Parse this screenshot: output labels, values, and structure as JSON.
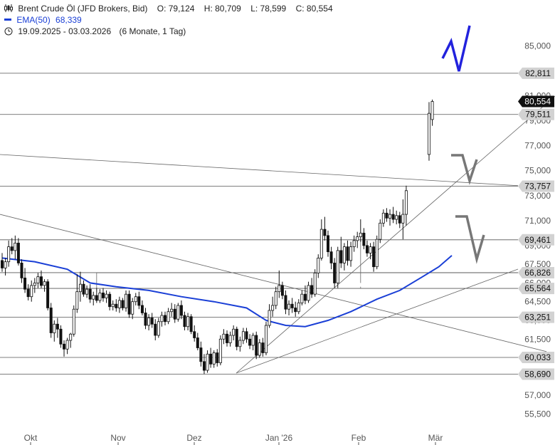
{
  "header": {
    "title": "Brent Crude Öl (JFD Brokers, Bid)",
    "open": "O: 79,124",
    "high": "H: 80,709",
    "low": "L: 78,599",
    "close": "C: 80,554",
    "ema_label": "EMA(50)",
    "ema_value": "68,339",
    "ema_color": "#1a3fd6",
    "date_range": "19.09.2025 - 03.03.2026",
    "period": "(6 Monate, 1 Tag)"
  },
  "chart_data": {
    "type": "candlestick",
    "y_axis": {
      "ticks": [
        "85,000",
        "81,000",
        "79,000",
        "77,000",
        "75,000",
        "73,000",
        "71,000",
        "69,000",
        "67,500",
        "66,000",
        "64,500",
        "63,000",
        "61,500",
        "60,000",
        "57,000",
        "55,500"
      ],
      "tick_values": [
        85.0,
        81.0,
        79.0,
        77.0,
        75.0,
        73.0,
        71.0,
        69.0,
        67.5,
        66.0,
        64.5,
        63.0,
        61.5,
        60.0,
        57.0,
        55.5
      ],
      "position": "right"
    },
    "x_axis": {
      "months": [
        "Okt",
        "Nov",
        "Dez",
        "Jan '26",
        "Feb",
        "Mär"
      ]
    },
    "levels": [
      {
        "label": "82,811",
        "value": 82.811,
        "highlight": false
      },
      {
        "label": "80,554",
        "value": 80.554,
        "highlight": true
      },
      {
        "label": "79,511",
        "value": 79.511,
        "highlight": false
      },
      {
        "label": "73,757",
        "value": 73.757,
        "highlight": false
      },
      {
        "label": "69,461",
        "value": 69.461,
        "highlight": false
      },
      {
        "label": "66,826",
        "value": 66.826,
        "highlight": false
      },
      {
        "label": "65,564",
        "value": 65.564,
        "highlight": false
      },
      {
        "label": "63,251",
        "value": 63.251,
        "highlight": false
      },
      {
        "label": "60,033",
        "value": 60.033,
        "highlight": false
      },
      {
        "label": "58,690",
        "value": 58.69,
        "highlight": false
      }
    ],
    "ema_series_name": "EMA(50)",
    "ema": [
      {
        "t": 0,
        "v": 68.0
      },
      {
        "t": 10,
        "v": 67.7
      },
      {
        "t": 20,
        "v": 67.1
      },
      {
        "t": 27,
        "v": 66.0
      },
      {
        "t": 35,
        "v": 65.7
      },
      {
        "t": 45,
        "v": 65.4
      },
      {
        "t": 55,
        "v": 64.9
      },
      {
        "t": 65,
        "v": 64.5
      },
      {
        "t": 75,
        "v": 64.0
      },
      {
        "t": 81,
        "v": 63.0
      },
      {
        "t": 87,
        "v": 62.6
      },
      {
        "t": 93,
        "v": 62.5
      },
      {
        "t": 100,
        "v": 63.0
      },
      {
        "t": 107,
        "v": 63.7
      },
      {
        "t": 115,
        "v": 64.7
      },
      {
        "t": 122,
        "v": 65.4
      },
      {
        "t": 129,
        "v": 66.5
      },
      {
        "t": 134,
        "v": 67.3
      },
      {
        "t": 138,
        "v": 68.2
      }
    ],
    "candles": [
      {
        "t": 0,
        "o": 67.8,
        "h": 68.4,
        "l": 66.9,
        "c": 67.2
      },
      {
        "t": 1,
        "o": 67.2,
        "h": 68.0,
        "l": 66.6,
        "c": 67.7
      },
      {
        "t": 2,
        "o": 67.7,
        "h": 69.4,
        "l": 67.3,
        "c": 68.9
      },
      {
        "t": 3,
        "o": 68.9,
        "h": 69.6,
        "l": 68.3,
        "c": 68.6
      },
      {
        "t": 4,
        "o": 68.6,
        "h": 69.8,
        "l": 67.9,
        "c": 69.2
      },
      {
        "t": 5,
        "o": 69.2,
        "h": 69.6,
        "l": 67.4,
        "c": 67.6
      },
      {
        "t": 6,
        "o": 67.6,
        "h": 67.9,
        "l": 66.0,
        "c": 66.4
      },
      {
        "t": 7,
        "o": 66.4,
        "h": 67.2,
        "l": 65.2,
        "c": 65.5
      },
      {
        "t": 8,
        "o": 65.5,
        "h": 65.9,
        "l": 64.6,
        "c": 64.9
      },
      {
        "t": 9,
        "o": 64.9,
        "h": 66.2,
        "l": 64.5,
        "c": 65.8
      },
      {
        "t": 10,
        "o": 65.8,
        "h": 66.4,
        "l": 65.2,
        "c": 66.0
      },
      {
        "t": 11,
        "o": 66.0,
        "h": 66.8,
        "l": 65.6,
        "c": 66.5
      },
      {
        "t": 12,
        "o": 66.5,
        "h": 67.0,
        "l": 65.6,
        "c": 65.8
      },
      {
        "t": 13,
        "o": 65.8,
        "h": 66.3,
        "l": 65.3,
        "c": 66.1
      },
      {
        "t": 14,
        "o": 66.1,
        "h": 66.3,
        "l": 63.8,
        "c": 64.0
      },
      {
        "t": 15,
        "o": 64.0,
        "h": 64.4,
        "l": 61.6,
        "c": 62.0
      },
      {
        "t": 16,
        "o": 62.0,
        "h": 63.0,
        "l": 61.3,
        "c": 62.7
      },
      {
        "t": 17,
        "o": 62.7,
        "h": 63.2,
        "l": 61.6,
        "c": 62.3
      },
      {
        "t": 18,
        "o": 62.3,
        "h": 62.6,
        "l": 60.8,
        "c": 61.1
      },
      {
        "t": 19,
        "o": 61.1,
        "h": 61.4,
        "l": 60.1,
        "c": 60.7
      },
      {
        "t": 20,
        "o": 60.7,
        "h": 61.6,
        "l": 60.3,
        "c": 61.4
      },
      {
        "t": 21,
        "o": 61.4,
        "h": 62.0,
        "l": 60.8,
        "c": 61.9
      },
      {
        "t": 22,
        "o": 61.9,
        "h": 64.2,
        "l": 61.7,
        "c": 63.9
      },
      {
        "t": 23,
        "o": 63.9,
        "h": 66.7,
        "l": 63.6,
        "c": 65.3
      },
      {
        "t": 24,
        "o": 65.3,
        "h": 66.9,
        "l": 64.5,
        "c": 65.9
      },
      {
        "t": 25,
        "o": 65.9,
        "h": 66.2,
        "l": 64.9,
        "c": 65.1
      },
      {
        "t": 26,
        "o": 65.1,
        "h": 65.8,
        "l": 64.8,
        "c": 65.5
      },
      {
        "t": 27,
        "o": 65.5,
        "h": 65.9,
        "l": 64.4,
        "c": 64.7
      },
      {
        "t": 28,
        "o": 64.7,
        "h": 65.3,
        "l": 64.2,
        "c": 65.0
      },
      {
        "t": 29,
        "o": 65.0,
        "h": 65.6,
        "l": 64.4,
        "c": 64.6
      },
      {
        "t": 30,
        "o": 64.6,
        "h": 65.5,
        "l": 64.4,
        "c": 65.2
      },
      {
        "t": 31,
        "o": 65.2,
        "h": 65.6,
        "l": 64.5,
        "c": 64.8
      },
      {
        "t": 32,
        "o": 64.8,
        "h": 65.4,
        "l": 64.4,
        "c": 65.1
      },
      {
        "t": 33,
        "o": 65.1,
        "h": 65.3,
        "l": 63.8,
        "c": 64.1
      },
      {
        "t": 34,
        "o": 64.1,
        "h": 64.6,
        "l": 63.8,
        "c": 64.3
      },
      {
        "t": 35,
        "o": 64.3,
        "h": 64.7,
        "l": 63.7,
        "c": 64.0
      },
      {
        "t": 36,
        "o": 64.0,
        "h": 64.9,
        "l": 63.6,
        "c": 64.6
      },
      {
        "t": 37,
        "o": 64.6,
        "h": 64.8,
        "l": 63.8,
        "c": 64.0
      },
      {
        "t": 38,
        "o": 64.0,
        "h": 65.4,
        "l": 63.7,
        "c": 65.1
      },
      {
        "t": 39,
        "o": 65.1,
        "h": 65.4,
        "l": 63.2,
        "c": 63.5
      },
      {
        "t": 40,
        "o": 63.5,
        "h": 64.8,
        "l": 63.1,
        "c": 64.5
      },
      {
        "t": 41,
        "o": 64.5,
        "h": 65.2,
        "l": 64.2,
        "c": 64.9
      },
      {
        "t": 42,
        "o": 64.9,
        "h": 65.3,
        "l": 63.9,
        "c": 64.2
      },
      {
        "t": 43,
        "o": 64.2,
        "h": 64.6,
        "l": 63.4,
        "c": 63.6
      },
      {
        "t": 44,
        "o": 63.6,
        "h": 64.0,
        "l": 62.3,
        "c": 62.6
      },
      {
        "t": 45,
        "o": 62.6,
        "h": 63.5,
        "l": 62.2,
        "c": 63.2
      },
      {
        "t": 46,
        "o": 63.2,
        "h": 63.6,
        "l": 62.4,
        "c": 62.7
      },
      {
        "t": 47,
        "o": 62.7,
        "h": 63.1,
        "l": 61.4,
        "c": 61.8
      },
      {
        "t": 48,
        "o": 61.8,
        "h": 63.2,
        "l": 61.6,
        "c": 62.9
      },
      {
        "t": 49,
        "o": 62.9,
        "h": 63.7,
        "l": 62.5,
        "c": 63.4
      },
      {
        "t": 50,
        "o": 63.4,
        "h": 63.7,
        "l": 62.6,
        "c": 62.9
      },
      {
        "t": 51,
        "o": 62.9,
        "h": 64.0,
        "l": 62.7,
        "c": 63.7
      },
      {
        "t": 52,
        "o": 63.7,
        "h": 64.4,
        "l": 63.3,
        "c": 63.9
      },
      {
        "t": 53,
        "o": 63.9,
        "h": 64.3,
        "l": 62.8,
        "c": 63.1
      },
      {
        "t": 54,
        "o": 63.1,
        "h": 64.4,
        "l": 62.9,
        "c": 64.2
      },
      {
        "t": 55,
        "o": 64.2,
        "h": 64.6,
        "l": 63.1,
        "c": 63.4
      },
      {
        "t": 56,
        "o": 63.4,
        "h": 63.7,
        "l": 62.2,
        "c": 62.5
      },
      {
        "t": 57,
        "o": 62.5,
        "h": 63.6,
        "l": 62.2,
        "c": 63.3
      },
      {
        "t": 58,
        "o": 63.3,
        "h": 63.5,
        "l": 61.9,
        "c": 62.1
      },
      {
        "t": 59,
        "o": 62.1,
        "h": 62.6,
        "l": 61.3,
        "c": 61.6
      },
      {
        "t": 60,
        "o": 61.6,
        "h": 62.0,
        "l": 60.6,
        "c": 60.8
      },
      {
        "t": 61,
        "o": 60.8,
        "h": 61.3,
        "l": 59.3,
        "c": 59.7
      },
      {
        "t": 62,
        "o": 59.7,
        "h": 60.3,
        "l": 58.7,
        "c": 59.0
      },
      {
        "t": 63,
        "o": 59.0,
        "h": 60.6,
        "l": 58.8,
        "c": 60.3
      },
      {
        "t": 64,
        "o": 60.3,
        "h": 60.8,
        "l": 59.2,
        "c": 59.5
      },
      {
        "t": 65,
        "o": 59.5,
        "h": 60.6,
        "l": 59.2,
        "c": 60.4
      },
      {
        "t": 66,
        "o": 60.4,
        "h": 60.7,
        "l": 59.3,
        "c": 59.6
      },
      {
        "t": 67,
        "o": 59.6,
        "h": 61.8,
        "l": 59.4,
        "c": 61.5
      },
      {
        "t": 68,
        "o": 61.5,
        "h": 62.3,
        "l": 61.1,
        "c": 61.9
      },
      {
        "t": 69,
        "o": 61.9,
        "h": 62.2,
        "l": 60.9,
        "c": 61.2
      },
      {
        "t": 70,
        "o": 61.2,
        "h": 62.1,
        "l": 60.9,
        "c": 61.8
      },
      {
        "t": 71,
        "o": 61.8,
        "h": 62.6,
        "l": 61.4,
        "c": 62.3
      },
      {
        "t": 72,
        "o": 62.3,
        "h": 62.5,
        "l": 60.6,
        "c": 60.9
      },
      {
        "t": 73,
        "o": 60.9,
        "h": 61.7,
        "l": 60.5,
        "c": 61.4
      },
      {
        "t": 74,
        "o": 61.4,
        "h": 62.4,
        "l": 61.1,
        "c": 62.1
      },
      {
        "t": 75,
        "o": 62.1,
        "h": 62.4,
        "l": 61.2,
        "c": 61.5
      },
      {
        "t": 76,
        "o": 61.5,
        "h": 61.9,
        "l": 60.7,
        "c": 61.0
      },
      {
        "t": 77,
        "o": 61.0,
        "h": 62.0,
        "l": 60.6,
        "c": 61.8
      },
      {
        "t": 78,
        "o": 61.8,
        "h": 62.1,
        "l": 59.9,
        "c": 60.2
      },
      {
        "t": 79,
        "o": 60.2,
        "h": 61.5,
        "l": 60.0,
        "c": 61.2
      },
      {
        "t": 80,
        "o": 61.2,
        "h": 61.6,
        "l": 60.1,
        "c": 60.4
      },
      {
        "t": 81,
        "o": 60.4,
        "h": 62.9,
        "l": 60.2,
        "c": 62.6
      },
      {
        "t": 82,
        "o": 62.6,
        "h": 64.3,
        "l": 62.4,
        "c": 63.8
      },
      {
        "t": 83,
        "o": 63.8,
        "h": 64.9,
        "l": 63.3,
        "c": 64.2
      },
      {
        "t": 84,
        "o": 64.2,
        "h": 65.7,
        "l": 63.9,
        "c": 65.3
      },
      {
        "t": 85,
        "o": 65.3,
        "h": 67.0,
        "l": 64.8,
        "c": 65.8
      },
      {
        "t": 86,
        "o": 65.8,
        "h": 66.1,
        "l": 64.7,
        "c": 65.0
      },
      {
        "t": 87,
        "o": 65.0,
        "h": 65.4,
        "l": 63.5,
        "c": 63.9
      },
      {
        "t": 88,
        "o": 63.9,
        "h": 64.6,
        "l": 63.4,
        "c": 64.3
      },
      {
        "t": 89,
        "o": 64.3,
        "h": 64.8,
        "l": 63.6,
        "c": 64.0
      },
      {
        "t": 90,
        "o": 64.0,
        "h": 64.5,
        "l": 63.3,
        "c": 63.7
      },
      {
        "t": 91,
        "o": 63.7,
        "h": 64.7,
        "l": 63.5,
        "c": 64.4
      },
      {
        "t": 92,
        "o": 64.4,
        "h": 65.4,
        "l": 64.2,
        "c": 65.1
      },
      {
        "t": 93,
        "o": 65.1,
        "h": 65.8,
        "l": 64.3,
        "c": 64.6
      },
      {
        "t": 94,
        "o": 64.6,
        "h": 66.1,
        "l": 64.4,
        "c": 65.8
      },
      {
        "t": 95,
        "o": 65.8,
        "h": 66.4,
        "l": 64.8,
        "c": 65.1
      },
      {
        "t": 96,
        "o": 65.1,
        "h": 67.1,
        "l": 64.9,
        "c": 66.8
      },
      {
        "t": 97,
        "o": 66.8,
        "h": 68.3,
        "l": 66.4,
        "c": 68.0
      },
      {
        "t": 98,
        "o": 68.0,
        "h": 71.1,
        "l": 67.8,
        "c": 70.3
      },
      {
        "t": 99,
        "o": 70.3,
        "h": 71.3,
        "l": 69.4,
        "c": 69.8
      },
      {
        "t": 100,
        "o": 69.8,
        "h": 70.2,
        "l": 68.1,
        "c": 68.5
      },
      {
        "t": 101,
        "o": 68.5,
        "h": 68.9,
        "l": 67.1,
        "c": 67.6
      },
      {
        "t": 102,
        "o": 67.6,
        "h": 68.0,
        "l": 65.6,
        "c": 66.0
      },
      {
        "t": 103,
        "o": 66.0,
        "h": 68.9,
        "l": 65.6,
        "c": 68.6
      },
      {
        "t": 104,
        "o": 68.6,
        "h": 69.7,
        "l": 67.2,
        "c": 67.6
      },
      {
        "t": 105,
        "o": 67.6,
        "h": 69.2,
        "l": 67.0,
        "c": 68.9
      },
      {
        "t": 106,
        "o": 68.9,
        "h": 69.4,
        "l": 67.4,
        "c": 67.8
      },
      {
        "t": 107,
        "o": 67.8,
        "h": 69.3,
        "l": 67.3,
        "c": 68.9
      },
      {
        "t": 108,
        "o": 68.9,
        "h": 69.8,
        "l": 68.5,
        "c": 69.4
      },
      {
        "t": 109,
        "o": 69.4,
        "h": 70.1,
        "l": 68.8,
        "c": 69.7
      },
      {
        "t": 110,
        "o": 69.7,
        "h": 71.1,
        "l": 69.3,
        "c": 70.0
      },
      {
        "t": 111,
        "o": 70.0,
        "h": 70.4,
        "l": 68.7,
        "c": 69.0
      },
      {
        "t": 112,
        "o": 69.0,
        "h": 69.4,
        "l": 68.1,
        "c": 68.4
      },
      {
        "t": 113,
        "o": 68.4,
        "h": 69.2,
        "l": 67.9,
        "c": 68.9
      },
      {
        "t": 114,
        "o": 68.9,
        "h": 69.3,
        "l": 66.9,
        "c": 67.3
      },
      {
        "t": 115,
        "o": 67.3,
        "h": 69.8,
        "l": 67.1,
        "c": 69.5
      },
      {
        "t": 116,
        "o": 69.5,
        "h": 71.1,
        "l": 69.2,
        "c": 70.8
      },
      {
        "t": 117,
        "o": 70.8,
        "h": 71.9,
        "l": 70.5,
        "c": 71.6
      },
      {
        "t": 118,
        "o": 71.6,
        "h": 72.0,
        "l": 70.9,
        "c": 71.2
      },
      {
        "t": 119,
        "o": 71.2,
        "h": 71.9,
        "l": 70.6,
        "c": 71.5
      },
      {
        "t": 120,
        "o": 71.5,
        "h": 72.1,
        "l": 70.8,
        "c": 71.1
      },
      {
        "t": 121,
        "o": 71.1,
        "h": 71.8,
        "l": 70.7,
        "c": 71.4
      },
      {
        "t": 122,
        "o": 71.4,
        "h": 71.7,
        "l": 70.4,
        "c": 70.8
      },
      {
        "t": 123,
        "o": 70.8,
        "h": 72.7,
        "l": 69.5,
        "c": 71.5
      },
      {
        "t": 124,
        "o": 71.5,
        "h": 73.8,
        "l": 70.6,
        "c": 73.4
      },
      {
        "t": 131,
        "o": 76.3,
        "h": 80.5,
        "l": 75.8,
        "c": 79.6
      },
      {
        "t": 132,
        "o": 79.1,
        "h": 80.7,
        "l": 78.6,
        "c": 80.55
      }
    ]
  }
}
